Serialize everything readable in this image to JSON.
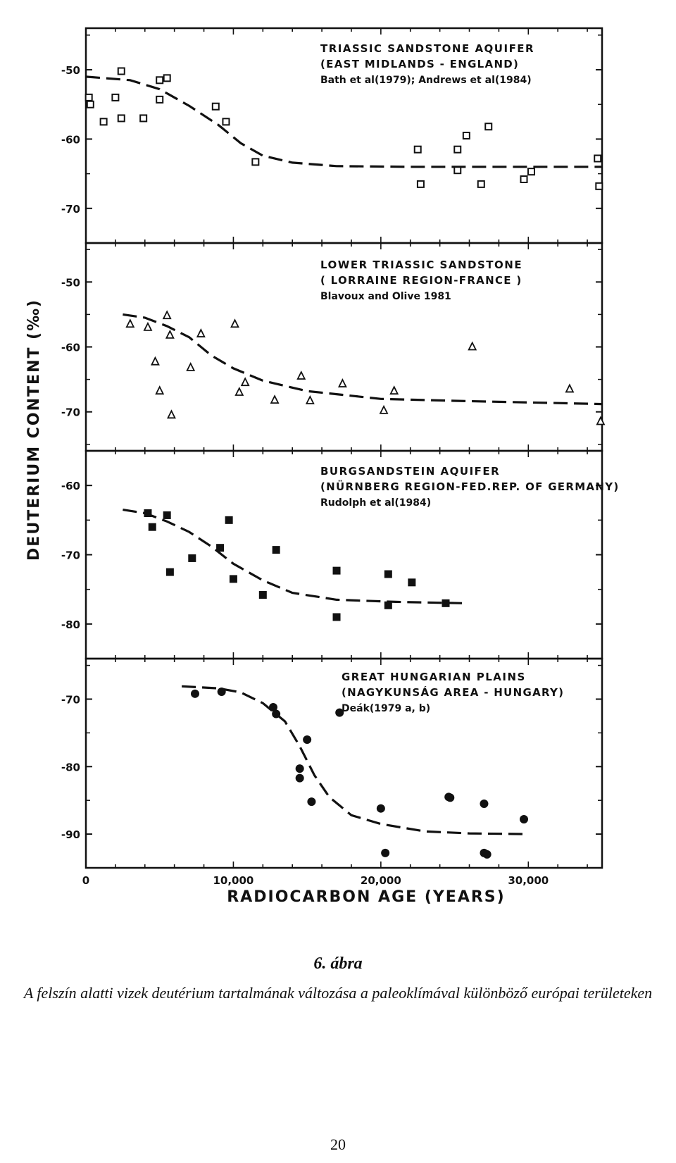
{
  "chart_data": [
    {
      "type": "scatter",
      "title": "TRIASSIC SANDSTONE AQUIFER",
      "subtitle": "(EAST MIDLANDS - ENGLAND)",
      "source": "Bath et al(1979); Andrews et al(1984)",
      "marker": "open-square",
      "ylim": [
        -75,
        -44
      ],
      "yticks": [
        -50,
        -60,
        -70
      ],
      "xlim": [
        0,
        35000
      ],
      "points": [
        [
          200,
          -54
        ],
        [
          300,
          -55
        ],
        [
          1200,
          -57.5
        ],
        [
          2000,
          -54
        ],
        [
          2400,
          -57
        ],
        [
          2400,
          -50.2
        ],
        [
          3900,
          -57
        ],
        [
          5000,
          -51.5
        ],
        [
          5000,
          -54.3
        ],
        [
          5500,
          -51.2
        ],
        [
          8800,
          -55.3
        ],
        [
          9500,
          -57.5
        ],
        [
          11500,
          -63.3
        ],
        [
          22500,
          -61.5
        ],
        [
          22700,
          -66.5
        ],
        [
          25200,
          -61.5
        ],
        [
          25200,
          -64.5
        ],
        [
          25800,
          -59.5
        ],
        [
          26800,
          -66.5
        ],
        [
          27300,
          -58.2
        ],
        [
          29700,
          -65.8
        ],
        [
          30200,
          -64.7
        ],
        [
          34700,
          -62.8
        ],
        [
          34800,
          -66.8
        ]
      ],
      "trend": [
        [
          0,
          -51
        ],
        [
          3000,
          -51.5
        ],
        [
          5000,
          -52.8
        ],
        [
          7000,
          -55.2
        ],
        [
          9000,
          -58
        ],
        [
          10500,
          -60.6
        ],
        [
          12000,
          -62.4
        ],
        [
          14000,
          -63.4
        ],
        [
          17000,
          -63.9
        ],
        [
          22000,
          -64
        ],
        [
          35000,
          -64
        ]
      ]
    },
    {
      "type": "scatter",
      "title": "LOWER TRIASSIC SANDSTONE",
      "subtitle": "( LORRAINE REGION-FRANCE )",
      "source": "Blavoux and Olive 1981",
      "marker": "open-triangle",
      "ylim": [
        -76,
        -44
      ],
      "yticks": [
        -50,
        -60,
        -70
      ],
      "xlim": [
        0,
        35000
      ],
      "points": [
        [
          3000,
          -56.5
        ],
        [
          4200,
          -57
        ],
        [
          4700,
          -62.3
        ],
        [
          5000,
          -66.8
        ],
        [
          5500,
          -55.2
        ],
        [
          5700,
          -58.2
        ],
        [
          5800,
          -70.5
        ],
        [
          7100,
          -63.2
        ],
        [
          7800,
          -58
        ],
        [
          10100,
          -56.5
        ],
        [
          10400,
          -67
        ],
        [
          10800,
          -65.5
        ],
        [
          12800,
          -68.2
        ],
        [
          14600,
          -64.5
        ],
        [
          15200,
          -68.3
        ],
        [
          17400,
          -65.7
        ],
        [
          20200,
          -69.8
        ],
        [
          20900,
          -66.8
        ],
        [
          26200,
          -60
        ],
        [
          32800,
          -66.5
        ],
        [
          34900,
          -71.5
        ]
      ],
      "trend": [
        [
          2500,
          -55
        ],
        [
          4000,
          -55.5
        ],
        [
          5500,
          -56.8
        ],
        [
          7000,
          -58.5
        ],
        [
          8500,
          -61.3
        ],
        [
          10000,
          -63.3
        ],
        [
          12000,
          -65.2
        ],
        [
          15000,
          -66.8
        ],
        [
          20000,
          -68
        ],
        [
          25000,
          -68.3
        ],
        [
          35000,
          -68.8
        ]
      ]
    },
    {
      "type": "scatter",
      "title": "BURGSANDSTEIN AQUIFER",
      "subtitle": "(NÜRNBERG REGION-FED.REP. OF GERMANY)",
      "source": "Rudolph et al(1984)",
      "marker": "filled-square",
      "ylim": [
        -85,
        -55
      ],
      "yticks": [
        -60,
        -70,
        -80
      ],
      "xlim": [
        0,
        35000
      ],
      "points": [
        [
          4200,
          -64
        ],
        [
          4500,
          -66
        ],
        [
          5500,
          -64.3
        ],
        [
          5700,
          -72.5
        ],
        [
          7200,
          -70.5
        ],
        [
          9100,
          -69
        ],
        [
          9700,
          -65
        ],
        [
          10000,
          -73.5
        ],
        [
          12000,
          -75.8
        ],
        [
          12900,
          -69.3
        ],
        [
          17000,
          -72.3
        ],
        [
          17000,
          -79
        ],
        [
          20500,
          -72.8
        ],
        [
          20500,
          -77.3
        ],
        [
          22100,
          -74
        ],
        [
          24400,
          -77
        ]
      ],
      "trend": [
        [
          2500,
          -63.5
        ],
        [
          4000,
          -64
        ],
        [
          5500,
          -65.2
        ],
        [
          7000,
          -66.7
        ],
        [
          8500,
          -68.8
        ],
        [
          10000,
          -71.3
        ],
        [
          12000,
          -73.7
        ],
        [
          14000,
          -75.5
        ],
        [
          17000,
          -76.5
        ],
        [
          21000,
          -76.8
        ],
        [
          25500,
          -77
        ]
      ]
    },
    {
      "type": "scatter",
      "title": "GREAT HUNGARIAN PLAINS",
      "subtitle": "(NAGYKUNSÁG AREA - HUNGARY)",
      "source": "Deák(1979 a, b)",
      "marker": "filled-circle",
      "ylim": [
        -95,
        -64
      ],
      "yticks": [
        -70,
        -80,
        -90
      ],
      "xlim": [
        0,
        35000
      ],
      "points": [
        [
          7400,
          -69.2
        ],
        [
          9200,
          -68.9
        ],
        [
          12700,
          -71.2
        ],
        [
          12900,
          -72.2
        ],
        [
          14500,
          -80.3
        ],
        [
          14500,
          -81.7
        ],
        [
          15000,
          -76
        ],
        [
          15300,
          -85.2
        ],
        [
          17200,
          -72
        ],
        [
          20000,
          -86.2
        ],
        [
          20300,
          -92.8
        ],
        [
          24600,
          -84.5
        ],
        [
          24700,
          -84.6
        ],
        [
          27000,
          -85.5
        ],
        [
          27000,
          -92.8
        ],
        [
          27200,
          -93
        ],
        [
          29700,
          -87.8
        ]
      ],
      "trend": [
        [
          6500,
          -68.1
        ],
        [
          9000,
          -68.4
        ],
        [
          10500,
          -69
        ],
        [
          12000,
          -70.6
        ],
        [
          13500,
          -73.3
        ],
        [
          14500,
          -77
        ],
        [
          15500,
          -81.3
        ],
        [
          16500,
          -84.5
        ],
        [
          18000,
          -87.2
        ],
        [
          20000,
          -88.5
        ],
        [
          23000,
          -89.6
        ],
        [
          26000,
          -89.9
        ],
        [
          30000,
          -90
        ]
      ]
    }
  ],
  "axes": {
    "ylabel": "DEUTERIUM CONTENT (‰)",
    "xlabel": "RADIOCARBON AGE (YEARS)",
    "xticks": [
      0,
      10000,
      20000,
      30000
    ],
    "xtick_labels": [
      "0",
      "10,000",
      "20,000",
      "30,000"
    ]
  },
  "caption": {
    "number": "6. ábra",
    "text": "A felszín alatti vizek deutérium tartalmának változása a paleoklímával különböző európai területeken"
  },
  "page_number": "20"
}
